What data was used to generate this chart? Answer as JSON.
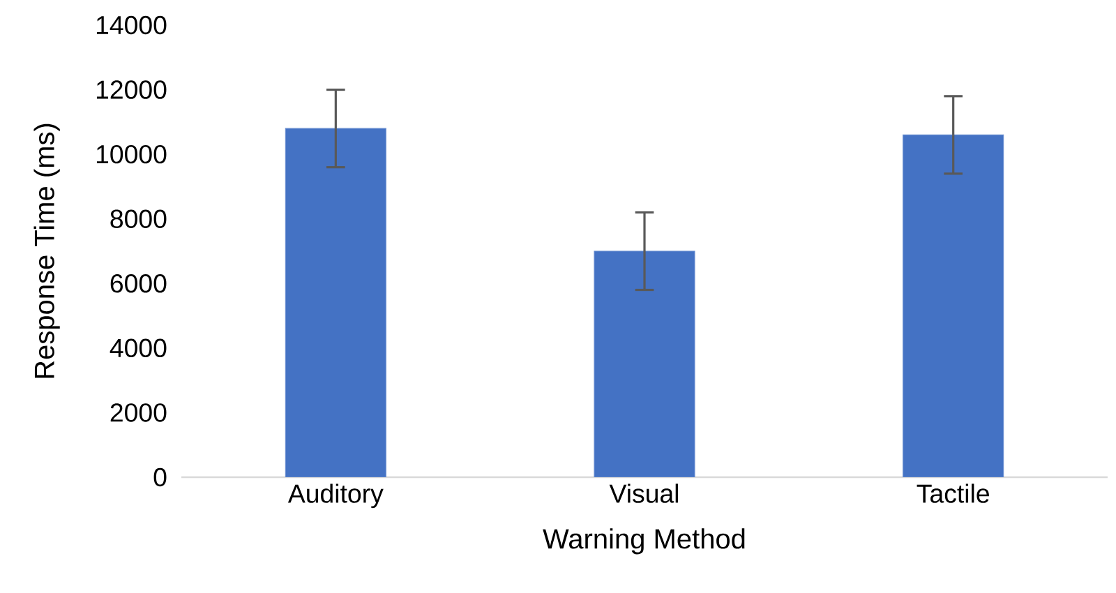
{
  "chart_data": {
    "type": "bar",
    "xlabel": "Warning Method",
    "ylabel": "Response Time (ms)",
    "categories": [
      "Auditory",
      "Visual",
      "Tactile"
    ],
    "values": [
      10800,
      7000,
      10600
    ],
    "errors": [
      1200,
      1200,
      1200
    ],
    "color": "#4472c4",
    "ylim": [
      0,
      14000
    ],
    "yticks": [
      0,
      2000,
      4000,
      6000,
      8000,
      10000,
      12000,
      14000
    ],
    "grid": false
  }
}
